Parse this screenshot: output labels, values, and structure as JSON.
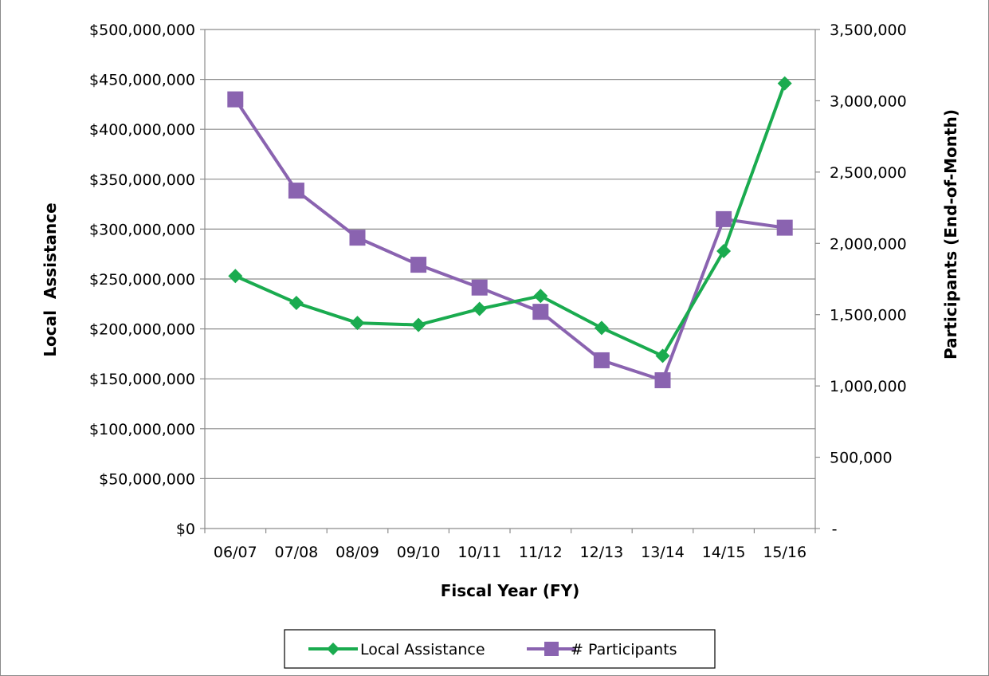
{
  "chart_data": {
    "type": "line",
    "title": "",
    "xlabel": "Fiscal Year (FY)",
    "ylabel_left": "Local  Assistance",
    "ylabel_right": "Participants (End-of-Month)",
    "categories": [
      "06/07",
      "07/08",
      "08/09",
      "09/10",
      "10/11",
      "11/12",
      "12/13",
      "13/14",
      "14/15",
      "15/16"
    ],
    "y_left_ticks": [
      "$0",
      "$50,000,000",
      "$100,000,000",
      "$150,000,000",
      "$200,000,000",
      "$250,000,000",
      "$300,000,000",
      "$350,000,000",
      "$400,000,000",
      "$450,000,000",
      "$500,000,000"
    ],
    "y_right_ticks": [
      "-",
      "500,000",
      "1,000,000",
      "1,500,000",
      "2,000,000",
      "2,500,000",
      "3,000,000",
      "3,500,000"
    ],
    "ylim_left": [
      0,
      500000000
    ],
    "ylim_right": [
      0,
      3500000
    ],
    "grid": true,
    "legend_position": "bottom",
    "series": [
      {
        "name": "Local Assistance",
        "axis": "left",
        "color": "#1aab4f",
        "marker": "diamond",
        "values": [
          253000000,
          226000000,
          206000000,
          204000000,
          220000000,
          233000000,
          201000000,
          173000000,
          278000000,
          446000000
        ]
      },
      {
        "name": "# Participants",
        "axis": "right",
        "color": "#8a63b0",
        "marker": "square",
        "values": [
          3010000,
          2370000,
          2040000,
          1850000,
          1690000,
          1520000,
          1180000,
          1040000,
          2170000,
          2110000
        ]
      }
    ]
  }
}
